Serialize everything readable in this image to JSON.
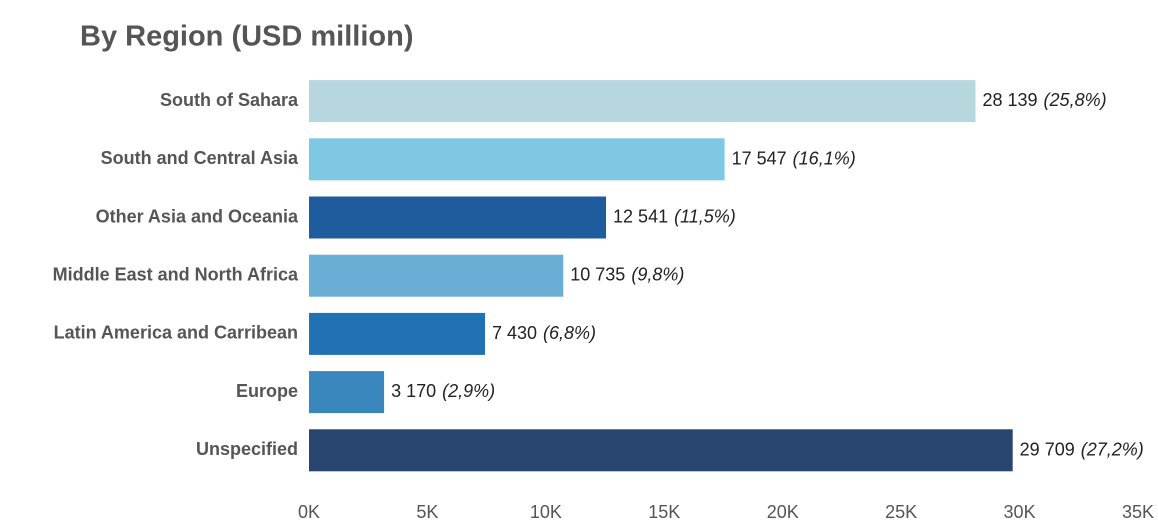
{
  "chart_data": {
    "type": "bar",
    "orientation": "horizontal",
    "title": "By Region (USD million)",
    "categories": [
      "South of Sahara",
      "South and Central Asia",
      "Other Asia and Oceania",
      "Middle East and North Africa",
      "Latin America and Carribean",
      "Europe",
      "Unspecified"
    ],
    "values": [
      28139,
      17547,
      12541,
      10735,
      7430,
      3170,
      29709
    ],
    "value_labels": [
      "28 139",
      "17 547",
      "12 541",
      "10 735",
      "7 430",
      "3 170",
      "29 709"
    ],
    "percent_labels": [
      "(25,8%)",
      "(16,1%)",
      "(11,5%)",
      "(9,8%)",
      "(6,8%)",
      "(2,9%)",
      "(27,2%)"
    ],
    "colors": [
      "#b7d7de",
      "#7ec8e3",
      "#1f5c9e",
      "#6aaed6",
      "#2171b5",
      "#3a87be",
      "#27456e"
    ],
    "xlim": [
      0,
      35000
    ],
    "xticks": [
      {
        "value": 0,
        "label": "0K"
      },
      {
        "value": 5000,
        "label": "5K"
      },
      {
        "value": 10000,
        "label": "10K"
      },
      {
        "value": 15000,
        "label": "15K"
      },
      {
        "value": 20000,
        "label": "20K"
      },
      {
        "value": 25000,
        "label": "25K"
      },
      {
        "value": 30000,
        "label": "30K"
      },
      {
        "value": 35000,
        "label": "35K"
      }
    ],
    "grid": false
  }
}
